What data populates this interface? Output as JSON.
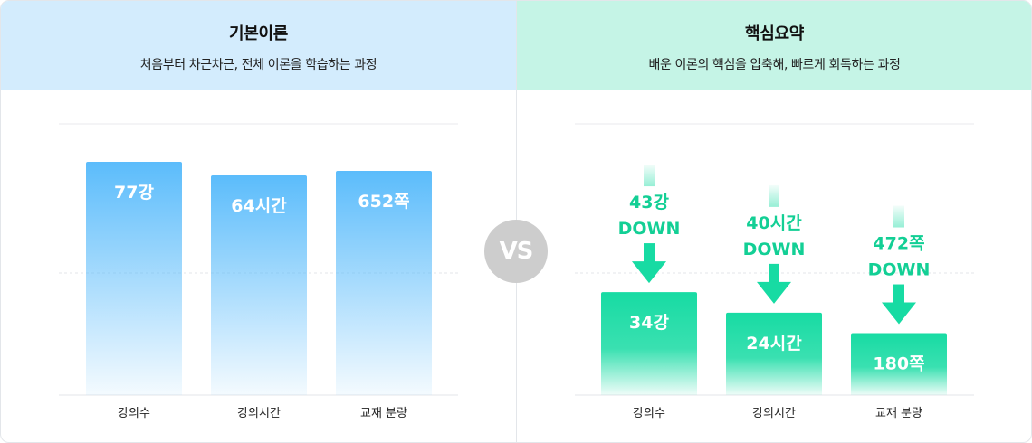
{
  "left": {
    "title": "기본이론",
    "subtitle": "처음부터 차근차근, 전체 이론을 학습하는 과정"
  },
  "right": {
    "title": "핵심요약",
    "subtitle": "배운 이론의 핵심을 압축해, 빠르게 회독하는 과정"
  },
  "vs_label": "VS",
  "colors": {
    "left_bar": "#5bbcfb",
    "right_bar": "#17dba3",
    "arrow": "#17dba3",
    "down_text": "#13cf95"
  },
  "chart_data": [
    {
      "type": "bar",
      "categories": [
        "강의수",
        "강의시간",
        "교재 분량"
      ],
      "values": [
        77,
        64,
        652
      ],
      "units": [
        "강",
        "시간",
        "쪽"
      ],
      "data_labels": [
        "77강",
        "64시간",
        "652쪽"
      ],
      "grid": true
    },
    {
      "type": "bar",
      "categories": [
        "강의수",
        "강의시간",
        "교재 분량"
      ],
      "values": [
        34,
        24,
        180
      ],
      "units": [
        "강",
        "시간",
        "쪽"
      ],
      "data_labels": [
        "34강",
        "24시간",
        "180쪽"
      ],
      "reductions": [
        {
          "amount": "43강",
          "word": "DOWN"
        },
        {
          "amount": "40시간",
          "word": "DOWN"
        },
        {
          "amount": "472쪽",
          "word": "DOWN"
        }
      ],
      "grid": true
    }
  ]
}
